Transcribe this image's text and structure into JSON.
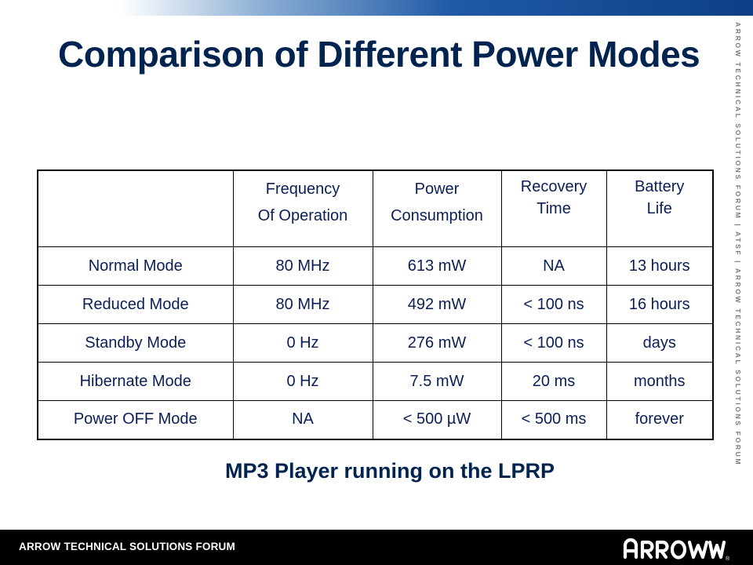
{
  "slide": {
    "title": "Comparison of Different Power Modes",
    "side_text": "ARROW TECHNICAL SOLUTIONS FORUM | ATSF | ARROW TECHNICAL SOLUTIONS FORUM",
    "caption": "MP3 Player running on the LPRP",
    "footer_text": "ARROW TECHNICAL SOLUTIONS FORUM",
    "logo_text": "ARROW",
    "logo_mark": "®"
  },
  "table": {
    "headers": [
      "",
      [
        "Frequency",
        "Of Operation"
      ],
      [
        "Power",
        "Consumption"
      ],
      [
        "Recovery",
        "Time"
      ],
      [
        "Battery",
        "Life"
      ]
    ],
    "rows": [
      [
        "Normal Mode",
        "80 MHz",
        "613 mW",
        "NA",
        "13 hours"
      ],
      [
        "Reduced Mode",
        "80 MHz",
        "492 mW",
        "< 100 ns",
        "16 hours"
      ],
      [
        "Standby Mode",
        "0 Hz",
        "276 mW",
        "< 100 ns",
        "days"
      ],
      [
        "Hibernate Mode",
        "0 Hz",
        "7.5 mW",
        "20 ms",
        "months"
      ],
      [
        "Power OFF Mode",
        "NA",
        "< 500 µW",
        "< 500 ms",
        "forever"
      ]
    ]
  },
  "colors": {
    "title": "#00234f",
    "table_text": "#0a1f55",
    "footer_bg": "#000000",
    "bar_blue": "#0d3f87"
  }
}
